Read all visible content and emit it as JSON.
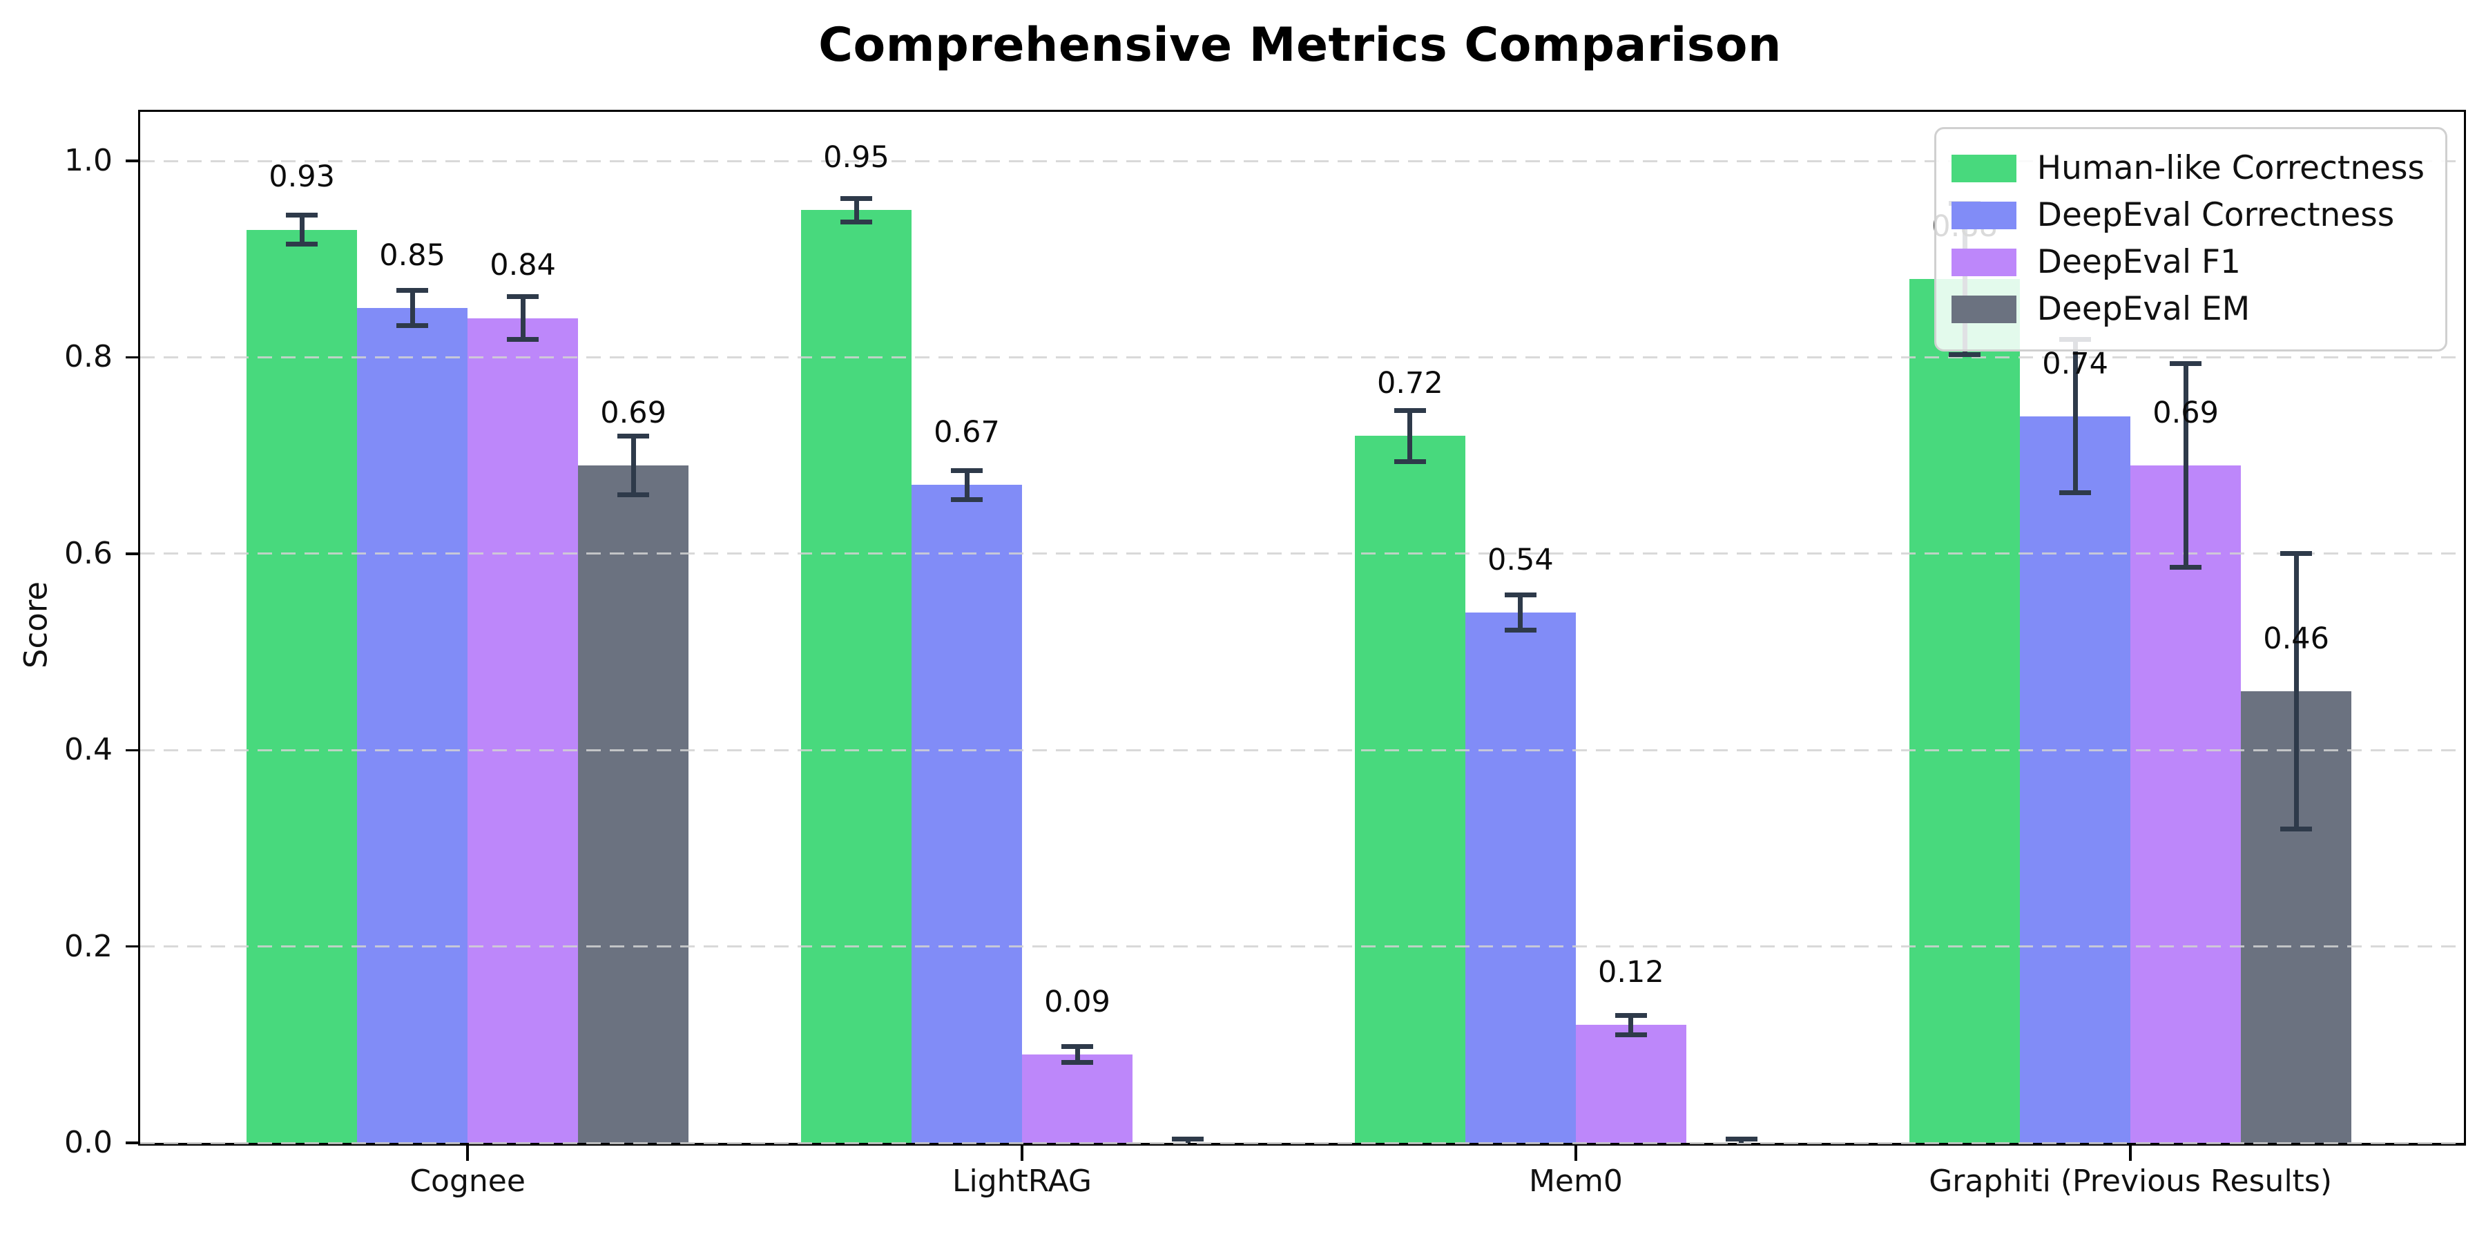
{
  "title": "Comprehensive Metrics Comparison",
  "chart_data": {
    "type": "bar",
    "title": "Comprehensive Metrics Comparison",
    "xlabel": "",
    "ylabel": "Score",
    "categories": [
      "Cognee",
      "LightRAG",
      "Mem0",
      "Graphiti (Previous Results)"
    ],
    "series": [
      {
        "name": "Human-like Correctness",
        "color": "#48d97d",
        "values": [
          0.93,
          0.95,
          0.72,
          0.88
        ],
        "errors": [
          0.015,
          0.012,
          0.026,
          0.077
        ],
        "labels": [
          "0.93",
          "0.95",
          "0.72",
          "0.88"
        ]
      },
      {
        "name": "DeepEval Correctness",
        "color": "#818cf7",
        "values": [
          0.85,
          0.67,
          0.54,
          0.74
        ],
        "errors": [
          0.018,
          0.015,
          0.018,
          0.078
        ],
        "labels": [
          "0.85",
          "0.67",
          "0.54",
          "0.74"
        ]
      },
      {
        "name": "DeepEval F1",
        "color": "#bd87fa",
        "values": [
          0.84,
          0.09,
          0.12,
          0.69
        ],
        "errors": [
          0.022,
          0.008,
          0.01,
          0.104
        ],
        "labels": [
          "0.84",
          "0.09",
          "0.12",
          "0.69"
        ]
      },
      {
        "name": "DeepEval EM",
        "color": "#6b7280",
        "values": [
          0.69,
          0.0,
          0.0,
          0.46
        ],
        "errors": [
          0.03,
          0.004,
          0.004,
          0.14
        ],
        "labels": [
          "0.69",
          null,
          null,
          "0.46"
        ]
      }
    ],
    "ytick_values": [
      0.0,
      0.2,
      0.4,
      0.6,
      0.8,
      1.0
    ],
    "ytick_labels": [
      "0.0",
      "0.2",
      "0.4",
      "0.6",
      "0.8",
      "1.0"
    ],
    "ylim": [
      0,
      1.05
    ],
    "grid": {
      "axis": "y",
      "style": "dashed",
      "color": "#d2d2d2"
    },
    "legend": {
      "position": "upper right"
    },
    "error_bar_color": "#2e3a4a",
    "background": "#ffffff"
  }
}
